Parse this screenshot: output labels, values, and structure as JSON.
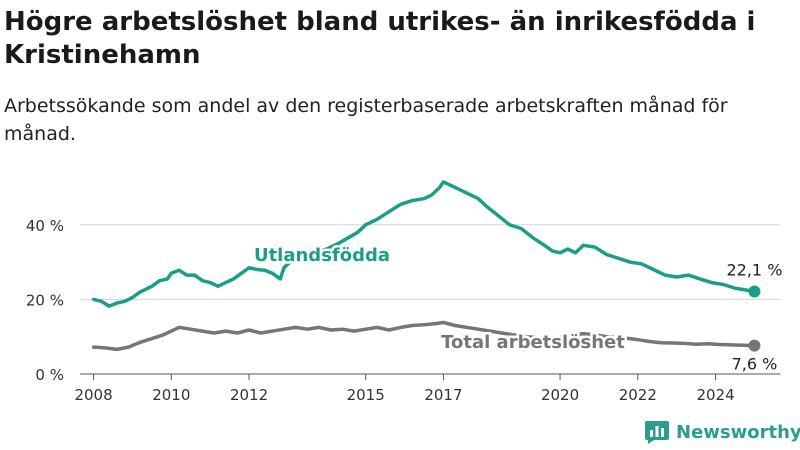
{
  "header": {
    "title": "Högre arbetslöshet bland utrikes- än inrikesfödda i Kristinehamn",
    "subtitle": "Arbetssökande som andel av den registerbaserade arbetskraften månad för månad."
  },
  "brand": {
    "name": "Newsworthy",
    "icon": "newsworthy-logo-icon",
    "color": "#2a9d8f"
  },
  "chart_data": {
    "type": "line",
    "title": "",
    "xlabel": "",
    "ylabel": "",
    "xlim": [
      2007.6,
      2025.4
    ],
    "ylim": [
      0,
      52
    ],
    "x_ticks": [
      2008,
      2010,
      2012,
      2015,
      2017,
      2020,
      2022,
      2024
    ],
    "x_tick_labels": [
      "2008",
      "2010",
      "2012",
      "2015",
      "2017",
      "2020",
      "2022",
      "2024"
    ],
    "y_ticks": [
      0,
      20,
      40
    ],
    "y_tick_labels": [
      "0 %",
      "20 %",
      "40 %"
    ],
    "grid": "horizontal",
    "legend": "none (direct labels)",
    "series": [
      {
        "name": "Utlandsfödda",
        "color": "#1a9e8a",
        "end_label": "22,1 %",
        "points": [
          [
            2008.0,
            20.0
          ],
          [
            2008.2,
            19.5
          ],
          [
            2008.4,
            18.2
          ],
          [
            2008.6,
            19.0
          ],
          [
            2008.8,
            19.5
          ],
          [
            2009.0,
            20.5
          ],
          [
            2009.2,
            22.0
          ],
          [
            2009.5,
            23.5
          ],
          [
            2009.7,
            25.0
          ],
          [
            2009.9,
            25.5
          ],
          [
            2010.0,
            27.0
          ],
          [
            2010.2,
            27.8
          ],
          [
            2010.4,
            26.5
          ],
          [
            2010.6,
            26.5
          ],
          [
            2010.8,
            25.0
          ],
          [
            2011.0,
            24.5
          ],
          [
            2011.2,
            23.5
          ],
          [
            2011.4,
            24.5
          ],
          [
            2011.6,
            25.5
          ],
          [
            2011.8,
            27.0
          ],
          [
            2012.0,
            28.5
          ],
          [
            2012.2,
            28.0
          ],
          [
            2012.4,
            27.8
          ],
          [
            2012.6,
            27.0
          ],
          [
            2012.8,
            25.5
          ],
          [
            2012.9,
            28.5
          ],
          [
            2013.1,
            30.5
          ],
          [
            2013.4,
            31.5
          ],
          [
            2013.7,
            32.5
          ],
          [
            2014.0,
            33.5
          ],
          [
            2014.3,
            35.0
          ],
          [
            2014.6,
            36.8
          ],
          [
            2014.8,
            38.0
          ],
          [
            2015.0,
            40.0
          ],
          [
            2015.3,
            41.5
          ],
          [
            2015.6,
            43.5
          ],
          [
            2015.9,
            45.5
          ],
          [
            2016.2,
            46.5
          ],
          [
            2016.5,
            47.0
          ],
          [
            2016.7,
            48.0
          ],
          [
            2016.9,
            50.0
          ],
          [
            2017.0,
            51.5
          ],
          [
            2017.2,
            50.5
          ],
          [
            2017.4,
            49.5
          ],
          [
            2017.6,
            48.5
          ],
          [
            2017.9,
            47.0
          ],
          [
            2018.1,
            45.0
          ],
          [
            2018.4,
            42.5
          ],
          [
            2018.7,
            40.0
          ],
          [
            2019.0,
            39.0
          ],
          [
            2019.3,
            36.5
          ],
          [
            2019.6,
            34.5
          ],
          [
            2019.8,
            33.0
          ],
          [
            2020.0,
            32.5
          ],
          [
            2020.2,
            33.5
          ],
          [
            2020.4,
            32.5
          ],
          [
            2020.6,
            34.5
          ],
          [
            2020.9,
            34.0
          ],
          [
            2021.2,
            32.0
          ],
          [
            2021.5,
            31.0
          ],
          [
            2021.8,
            30.0
          ],
          [
            2022.1,
            29.5
          ],
          [
            2022.4,
            28.0
          ],
          [
            2022.7,
            26.5
          ],
          [
            2023.0,
            26.0
          ],
          [
            2023.3,
            26.5
          ],
          [
            2023.6,
            25.5
          ],
          [
            2023.9,
            24.5
          ],
          [
            2024.2,
            24.0
          ],
          [
            2024.5,
            23.0
          ],
          [
            2024.8,
            22.5
          ],
          [
            2025.0,
            22.1
          ]
        ]
      },
      {
        "name": "Total arbetslöshet",
        "color": "#767676",
        "end_label": "7,6 %",
        "points": [
          [
            2008.0,
            7.2
          ],
          [
            2008.3,
            7.0
          ],
          [
            2008.6,
            6.6
          ],
          [
            2008.9,
            7.2
          ],
          [
            2009.2,
            8.5
          ],
          [
            2009.5,
            9.5
          ],
          [
            2009.8,
            10.5
          ],
          [
            2010.0,
            11.5
          ],
          [
            2010.2,
            12.5
          ],
          [
            2010.5,
            12.0
          ],
          [
            2010.8,
            11.5
          ],
          [
            2011.1,
            11.0
          ],
          [
            2011.4,
            11.5
          ],
          [
            2011.7,
            11.0
          ],
          [
            2012.0,
            11.8
          ],
          [
            2012.3,
            11.0
          ],
          [
            2012.6,
            11.5
          ],
          [
            2012.9,
            12.0
          ],
          [
            2013.2,
            12.5
          ],
          [
            2013.5,
            12.0
          ],
          [
            2013.8,
            12.5
          ],
          [
            2014.1,
            11.8
          ],
          [
            2014.4,
            12.0
          ],
          [
            2014.7,
            11.5
          ],
          [
            2015.0,
            12.0
          ],
          [
            2015.3,
            12.5
          ],
          [
            2015.6,
            11.8
          ],
          [
            2015.9,
            12.5
          ],
          [
            2016.2,
            13.0
          ],
          [
            2016.5,
            13.2
          ],
          [
            2016.8,
            13.5
          ],
          [
            2017.0,
            13.8
          ],
          [
            2017.3,
            13.0
          ],
          [
            2017.6,
            12.5
          ],
          [
            2017.9,
            12.0
          ],
          [
            2018.2,
            11.5
          ],
          [
            2018.5,
            11.0
          ],
          [
            2018.8,
            10.5
          ],
          [
            2019.1,
            10.0
          ],
          [
            2019.4,
            9.8
          ],
          [
            2019.7,
            9.5
          ],
          [
            2020.0,
            9.8
          ],
          [
            2020.3,
            10.5
          ],
          [
            2020.6,
            10.8
          ],
          [
            2020.9,
            10.5
          ],
          [
            2021.2,
            10.0
          ],
          [
            2021.5,
            9.8
          ],
          [
            2021.8,
            9.5
          ],
          [
            2022.0,
            9.2
          ],
          [
            2022.3,
            8.7
          ],
          [
            2022.6,
            8.4
          ],
          [
            2022.9,
            8.3
          ],
          [
            2023.2,
            8.2
          ],
          [
            2023.5,
            8.0
          ],
          [
            2023.8,
            8.1
          ],
          [
            2024.1,
            7.9
          ],
          [
            2024.4,
            7.8
          ],
          [
            2024.7,
            7.7
          ],
          [
            2025.0,
            7.6
          ]
        ]
      }
    ]
  }
}
